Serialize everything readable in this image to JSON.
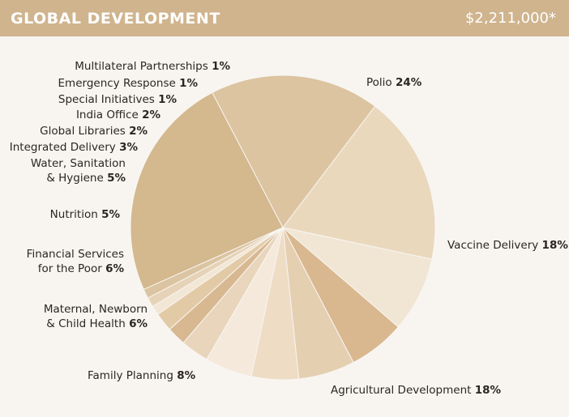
{
  "header": {
    "title": "GLOBAL DEVELOPMENT",
    "total": "$2,211,000*"
  },
  "colors": {
    "header_bg": "#cfb48e",
    "background": "#f8f5f1",
    "slice_outline": "#f8f5f1"
  },
  "chart_data": {
    "type": "pie",
    "title": "GLOBAL DEVELOPMENT",
    "unit": "%",
    "slices": [
      {
        "name": "Polio",
        "value": 24,
        "color": "#d4b88e",
        "label_lines": [
          "Polio"
        ],
        "anchor": "start"
      },
      {
        "name": "Vaccine Delivery",
        "value": 18,
        "color": "#dcc4a0",
        "label_lines": [
          "Vaccine Delivery"
        ],
        "anchor": "start"
      },
      {
        "name": "Agricultural Development",
        "value": 18,
        "color": "#ead8bd",
        "label_lines": [
          "Agricultural Development"
        ],
        "anchor": "start"
      },
      {
        "name": "Family Planning",
        "value": 8,
        "color": "#f1e6d4",
        "label_lines": [
          "Family Planning"
        ],
        "anchor": "start"
      },
      {
        "name": "Maternal, Newborn & Child Health",
        "value": 6,
        "color": "#d9b78f",
        "label_lines": [
          "Maternal, Newborn",
          "& Child Health"
        ],
        "anchor": "end"
      },
      {
        "name": "Financial Services for the Poor",
        "value": 6,
        "color": "#e5cfb1",
        "label_lines": [
          "Financial Services",
          "for the Poor"
        ],
        "anchor": "end"
      },
      {
        "name": "Nutrition",
        "value": 5,
        "color": "#eedcc4",
        "label_lines": [
          "Nutrition"
        ],
        "anchor": "end"
      },
      {
        "name": "Water, Sanitation & Hygiene",
        "value": 5,
        "color": "#f4e9db",
        "label_lines": [
          "Water, Sanitation",
          "& Hygiene"
        ],
        "anchor": "end"
      },
      {
        "name": "Integrated Delivery",
        "value": 3,
        "color": "#e8d5bb",
        "label_lines": [
          "Integrated Delivery"
        ],
        "anchor": "end"
      },
      {
        "name": "Global Libraries",
        "value": 2,
        "color": "#d8b891",
        "label_lines": [
          "Global Libraries"
        ],
        "anchor": "end"
      },
      {
        "name": "India Office",
        "value": 2,
        "color": "#e3caa7",
        "label_lines": [
          "India Office"
        ],
        "anchor": "end"
      },
      {
        "name": "Special Initiatives",
        "value": 1,
        "color": "#f2e6d5",
        "label_lines": [
          "Special Initiatives"
        ],
        "anchor": "end"
      },
      {
        "name": "Emergency Response",
        "value": 1,
        "color": "#e6d2b6",
        "label_lines": [
          "Emergency Response"
        ],
        "anchor": "end"
      },
      {
        "name": "Multilateral Partnerships",
        "value": 1,
        "color": "#dbc4a1",
        "label_lines": [
          "Multilateral Partnerships"
        ],
        "anchor": "end"
      }
    ]
  }
}
